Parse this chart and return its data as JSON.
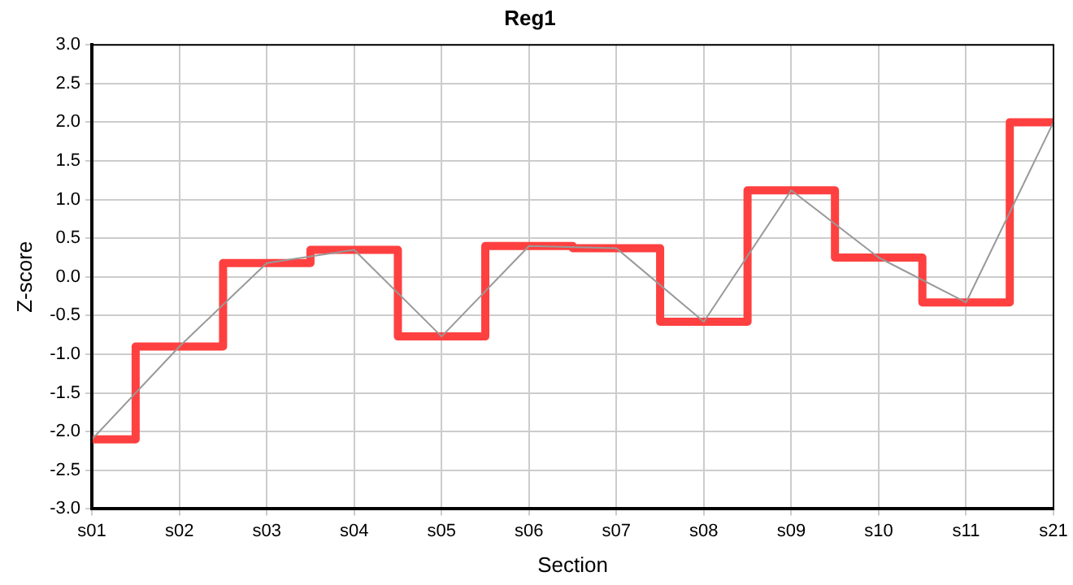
{
  "chart_data": {
    "type": "step",
    "title": "Reg1",
    "xlabel": "Section",
    "ylabel": "Z-score",
    "categories": [
      "s01",
      "s02",
      "s03",
      "s04",
      "s05",
      "s06",
      "s07",
      "s08",
      "s09",
      "s10",
      "s11",
      "s21"
    ],
    "series": [
      {
        "type": "line",
        "color": "#999999",
        "values": [
          -2.1,
          -0.9,
          0.18,
          0.35,
          -0.77,
          0.4,
          0.37,
          -0.58,
          1.12,
          0.25,
          -0.33,
          2.0
        ]
      },
      {
        "color": "#ff4040",
        "values": [
          -2.1,
          -0.9,
          0.18,
          0.35,
          -0.77,
          0.4,
          0.37,
          -0.58,
          1.12,
          0.25,
          -0.33,
          2.0
        ]
      }
    ],
    "ylim": [
      -3,
      3
    ],
    "yticks": [
      {
        "value": -3,
        "label": "-3.0"
      },
      {
        "value": -2.5,
        "label": "-2.5"
      },
      {
        "value": -2,
        "label": "-2.0"
      },
      {
        "value": -1.5,
        "label": "-1.5"
      },
      {
        "value": -1,
        "label": "-1.0"
      },
      {
        "value": -0.5,
        "label": "-0.5"
      },
      {
        "value": 0,
        "label": "0.0"
      },
      {
        "value": 0.5,
        "label": "0.5"
      },
      {
        "value": 1,
        "label": "1.0"
      },
      {
        "value": 1.5,
        "label": "1.5"
      },
      {
        "value": 2,
        "label": "2.0"
      },
      {
        "value": 2.5,
        "label": "2.5"
      },
      {
        "value": 3,
        "label": "3.0"
      }
    ],
    "grid": true,
    "legend": false,
    "marker": "none",
    "line_style": "solid"
  }
}
